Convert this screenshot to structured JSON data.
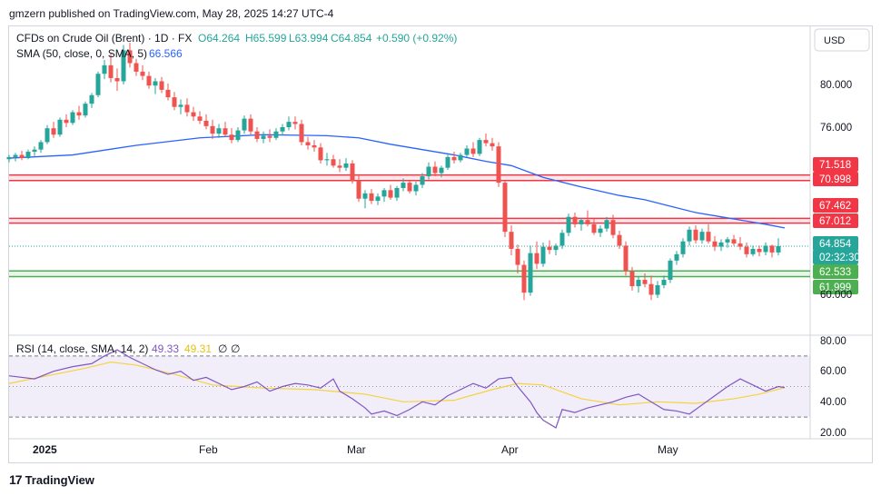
{
  "header": {
    "text": "gmzern published on TradingView.com, May 28, 2025 14:27 UTC-4"
  },
  "legend": {
    "symbol": "CFDs on Crude Oil (Brent) · 1D · FX",
    "o": "O64.264",
    "h": "H65.599",
    "l": "L63.994",
    "c": "C64.854",
    "change": "+0.590 (+0.92%)",
    "sma_label": "SMA (50, close, 0, SMA, 5)",
    "sma_value": "66.566",
    "rsi_label": "RSI (14, close, SMA, 14, 2)",
    "rsi_value": "49.33",
    "rsi_sma_value": "49.31",
    "rsi_extra1": "∅",
    "rsi_extra2": "∅"
  },
  "price_axis": {
    "currency": "USD",
    "ticks": [
      "80.000",
      "76.000",
      "60.000"
    ]
  },
  "rsi_axis": {
    "ticks": [
      "80.00",
      "60.00",
      "40.00",
      "20.00"
    ]
  },
  "time_axis": {
    "ticks": [
      "2025",
      "Feb",
      "Mar",
      "Apr",
      "May"
    ]
  },
  "price_labels": [
    {
      "text": "71.518",
      "kind": "red",
      "value": 71.518
    },
    {
      "text": "70.998",
      "kind": "red",
      "value": 70.998
    },
    {
      "text": "67.462",
      "kind": "red",
      "value": 67.462
    },
    {
      "text": "67.012",
      "kind": "red",
      "value": 67.012
    },
    {
      "text": "64.854",
      "kind": "teal",
      "value": 64.854
    },
    {
      "text": "02:32:30",
      "kind": "teal-sub",
      "value": 64.854
    },
    {
      "text": "62.533",
      "kind": "green",
      "value": 62.533
    },
    {
      "text": "61.999",
      "kind": "green",
      "value": 61.999
    }
  ],
  "branding": {
    "name": "TradingView",
    "mark": "17"
  },
  "colors": {
    "up": "#26a69a",
    "down": "#ef5350",
    "sma": "#2962ff",
    "rsi": "#7e57c2",
    "rsi_sma": "#f5d23c",
    "resistance": "#f23645",
    "support": "#4caf50"
  },
  "chart_data": {
    "type": "candlestick",
    "y_range": [
      58.0,
      87.2
    ],
    "rsi_range": [
      15,
      85
    ],
    "resistance_zones": [
      [
        70.998,
        71.518
      ],
      [
        67.012,
        67.462
      ]
    ],
    "support_zone": [
      61.999,
      62.533
    ],
    "last_price": 64.854,
    "candles": [
      [
        73.0,
        73.4,
        72.7,
        73.2
      ],
      [
        73.2,
        73.6,
        72.8,
        73.4
      ],
      [
        73.4,
        73.8,
        72.9,
        73.1
      ],
      [
        73.1,
        73.9,
        73.0,
        73.7
      ],
      [
        73.7,
        74.2,
        73.3,
        73.9
      ],
      [
        73.9,
        74.8,
        73.6,
        74.6
      ],
      [
        74.6,
        76.2,
        74.4,
        75.9
      ],
      [
        75.9,
        76.5,
        75.0,
        75.3
      ],
      [
        75.3,
        76.9,
        75.1,
        76.7
      ],
      [
        76.7,
        77.2,
        76.0,
        76.4
      ],
      [
        76.4,
        77.6,
        76.2,
        77.4
      ],
      [
        77.4,
        78.0,
        76.7,
        77.1
      ],
      [
        77.1,
        78.4,
        76.9,
        78.2
      ],
      [
        78.2,
        79.2,
        77.8,
        79.0
      ],
      [
        79.0,
        81.2,
        78.8,
        81.0
      ],
      [
        81.0,
        82.3,
        80.5,
        81.8
      ],
      [
        81.8,
        82.9,
        80.2,
        80.6
      ],
      [
        80.6,
        81.5,
        79.4,
        80.3
      ],
      [
        80.3,
        83.7,
        80.0,
        83.2
      ],
      [
        83.2,
        83.9,
        81.6,
        82.0
      ],
      [
        82.0,
        82.4,
        80.8,
        81.2
      ],
      [
        81.2,
        81.8,
        80.4,
        80.8
      ],
      [
        80.8,
        81.2,
        79.6,
        79.9
      ],
      [
        79.9,
        80.6,
        79.1,
        80.3
      ],
      [
        80.3,
        80.7,
        79.2,
        79.5
      ],
      [
        79.5,
        80.1,
        78.5,
        78.8
      ],
      [
        78.8,
        79.3,
        77.6,
        77.9
      ],
      [
        77.9,
        78.6,
        77.2,
        78.1
      ],
      [
        78.1,
        78.7,
        77.0,
        77.4
      ],
      [
        77.4,
        77.9,
        76.6,
        77.0
      ],
      [
        77.0,
        77.5,
        76.3,
        76.6
      ],
      [
        76.6,
        77.2,
        75.8,
        76.1
      ],
      [
        76.1,
        76.7,
        74.9,
        75.4
      ],
      [
        75.4,
        76.3,
        75.0,
        75.9
      ],
      [
        75.9,
        76.5,
        75.1,
        75.3
      ],
      [
        75.3,
        75.9,
        74.5,
        74.8
      ],
      [
        74.8,
        76.0,
        74.6,
        75.7
      ],
      [
        75.7,
        77.1,
        75.4,
        76.8
      ],
      [
        76.8,
        77.2,
        75.3,
        75.6
      ],
      [
        75.6,
        76.0,
        74.6,
        74.9
      ],
      [
        74.9,
        75.6,
        74.5,
        75.2
      ],
      [
        75.2,
        75.8,
        74.6,
        75.0
      ],
      [
        75.0,
        75.9,
        74.8,
        75.6
      ],
      [
        75.6,
        76.3,
        75.2,
        76.0
      ],
      [
        76.0,
        77.0,
        75.7,
        76.5
      ],
      [
        76.5,
        77.0,
        75.8,
        76.3
      ],
      [
        76.3,
        76.7,
        74.3,
        74.6
      ],
      [
        74.6,
        75.1,
        73.9,
        74.3
      ],
      [
        74.3,
        74.8,
        73.7,
        74.1
      ],
      [
        74.1,
        74.5,
        72.6,
        72.9
      ],
      [
        72.9,
        73.6,
        72.4,
        73.0
      ],
      [
        73.0,
        73.4,
        72.2,
        72.4
      ],
      [
        72.4,
        73.0,
        71.8,
        72.2
      ],
      [
        72.2,
        73.1,
        71.9,
        72.6
      ],
      [
        72.6,
        72.9,
        70.7,
        71.0
      ],
      [
        71.0,
        71.5,
        69.0,
        69.3
      ],
      [
        69.3,
        70.1,
        68.4,
        69.8
      ],
      [
        69.8,
        70.2,
        68.8,
        69.1
      ],
      [
        69.1,
        69.8,
        68.7,
        69.5
      ],
      [
        69.5,
        70.3,
        69.0,
        70.1
      ],
      [
        70.1,
        70.6,
        69.2,
        69.4
      ],
      [
        69.4,
        70.5,
        69.1,
        70.3
      ],
      [
        70.3,
        71.2,
        70.0,
        70.8
      ],
      [
        70.8,
        71.0,
        69.8,
        70.0
      ],
      [
        70.0,
        70.9,
        69.6,
        70.6
      ],
      [
        70.6,
        71.7,
        70.3,
        71.4
      ],
      [
        71.4,
        72.7,
        71.1,
        72.3
      ],
      [
        72.3,
        72.8,
        71.4,
        71.7
      ],
      [
        71.7,
        72.4,
        71.3,
        72.2
      ],
      [
        72.2,
        73.4,
        72.0,
        73.2
      ],
      [
        73.2,
        73.7,
        72.6,
        72.9
      ],
      [
        72.9,
        73.6,
        72.7,
        73.4
      ],
      [
        73.4,
        74.3,
        73.2,
        74.0
      ],
      [
        74.0,
        74.6,
        73.2,
        73.5
      ],
      [
        73.5,
        75.0,
        73.3,
        74.8
      ],
      [
        74.8,
        75.4,
        74.2,
        74.5
      ],
      [
        74.5,
        75.0,
        73.8,
        74.2
      ],
      [
        74.2,
        74.6,
        70.4,
        70.8
      ],
      [
        70.8,
        71.0,
        65.7,
        66.2
      ],
      [
        66.2,
        66.8,
        64.0,
        64.6
      ],
      [
        64.6,
        65.0,
        62.3,
        63.1
      ],
      [
        63.1,
        63.5,
        59.8,
        60.5
      ],
      [
        60.5,
        64.9,
        60.2,
        64.2
      ],
      [
        64.2,
        65.3,
        62.7,
        63.2
      ],
      [
        63.2,
        65.2,
        62.9,
        64.8
      ],
      [
        64.8,
        65.4,
        64.1,
        64.5
      ],
      [
        64.5,
        65.1,
        64.0,
        64.9
      ],
      [
        64.9,
        66.4,
        64.6,
        66.1
      ],
      [
        66.1,
        67.9,
        65.8,
        67.6
      ],
      [
        67.6,
        68.0,
        66.6,
        66.9
      ],
      [
        66.9,
        67.5,
        66.3,
        67.3
      ],
      [
        67.3,
        68.2,
        66.7,
        66.9
      ],
      [
        66.9,
        67.4,
        65.9,
        66.1
      ],
      [
        66.1,
        66.8,
        65.7,
        66.5
      ],
      [
        66.5,
        67.6,
        66.2,
        67.3
      ],
      [
        67.3,
        67.8,
        65.6,
        65.9
      ],
      [
        65.9,
        66.3,
        64.6,
        64.9
      ],
      [
        64.9,
        65.3,
        62.1,
        62.5
      ],
      [
        62.5,
        62.9,
        60.7,
        61.1
      ],
      [
        61.1,
        62.0,
        60.5,
        61.7
      ],
      [
        61.7,
        62.3,
        61.0,
        61.3
      ],
      [
        61.3,
        62.1,
        59.8,
        60.3
      ],
      [
        60.3,
        61.6,
        60.0,
        61.2
      ],
      [
        61.2,
        62.1,
        60.9,
        61.7
      ],
      [
        61.7,
        63.7,
        61.4,
        63.5
      ],
      [
        63.5,
        64.4,
        63.1,
        64.1
      ],
      [
        64.1,
        65.6,
        63.8,
        65.3
      ],
      [
        65.3,
        66.7,
        64.9,
        66.4
      ],
      [
        66.4,
        66.8,
        65.1,
        65.4
      ],
      [
        65.4,
        66.5,
        65.1,
        66.2
      ],
      [
        66.2,
        66.9,
        65.1,
        65.3
      ],
      [
        65.3,
        65.8,
        64.4,
        64.8
      ],
      [
        64.8,
        65.5,
        64.4,
        65.2
      ],
      [
        65.2,
        65.7,
        64.7,
        65.5
      ],
      [
        65.5,
        65.9,
        64.9,
        65.1
      ],
      [
        65.1,
        65.7,
        64.5,
        64.8
      ],
      [
        64.8,
        65.2,
        63.8,
        64.1
      ],
      [
        64.1,
        64.9,
        63.9,
        64.6
      ],
      [
        64.6,
        64.9,
        63.9,
        64.3
      ],
      [
        64.3,
        65.2,
        64.0,
        64.9
      ],
      [
        64.9,
        65.0,
        63.8,
        64.264
      ],
      [
        64.264,
        65.599,
        63.994,
        64.854
      ]
    ],
    "sma": [
      [
        0,
        73.1
      ],
      [
        10,
        73.4
      ],
      [
        20,
        74.3
      ],
      [
        30,
        75.0
      ],
      [
        40,
        75.3
      ],
      [
        50,
        75.2
      ],
      [
        55,
        75.0
      ],
      [
        60,
        74.4
      ],
      [
        65,
        73.9
      ],
      [
        70,
        73.4
      ],
      [
        75,
        72.8
      ],
      [
        79,
        72.4
      ],
      [
        84,
        71.3
      ],
      [
        90,
        70.4
      ],
      [
        96,
        69.6
      ],
      [
        100,
        69.2
      ],
      [
        104,
        68.6
      ],
      [
        108,
        68.0
      ],
      [
        112,
        67.6
      ],
      [
        116,
        67.2
      ],
      [
        119,
        66.9
      ],
      [
        122,
        66.566
      ]
    ],
    "rsi": [
      [
        0,
        57
      ],
      [
        4,
        55
      ],
      [
        7,
        60
      ],
      [
        10,
        63
      ],
      [
        13,
        65
      ],
      [
        15,
        70
      ],
      [
        17,
        74
      ],
      [
        19,
        69
      ],
      [
        21,
        65
      ],
      [
        23,
        61
      ],
      [
        25,
        58
      ],
      [
        27,
        60
      ],
      [
        29,
        54
      ],
      [
        31,
        56
      ],
      [
        33,
        52
      ],
      [
        35,
        48
      ],
      [
        37,
        50
      ],
      [
        39,
        53
      ],
      [
        41,
        47
      ],
      [
        43,
        50
      ],
      [
        45,
        52
      ],
      [
        47,
        51
      ],
      [
        49,
        49
      ],
      [
        51,
        55
      ],
      [
        52,
        47
      ],
      [
        54,
        42
      ],
      [
        56,
        36
      ],
      [
        57,
        32
      ],
      [
        59,
        34
      ],
      [
        61,
        31
      ],
      [
        63,
        35
      ],
      [
        65,
        40
      ],
      [
        67,
        38
      ],
      [
        69,
        44
      ],
      [
        71,
        48
      ],
      [
        73,
        52
      ],
      [
        75,
        49
      ],
      [
        77,
        55
      ],
      [
        79,
        56
      ],
      [
        80,
        50
      ],
      [
        82,
        40
      ],
      [
        83,
        33
      ],
      [
        84,
        28
      ],
      [
        86,
        23
      ],
      [
        87,
        35
      ],
      [
        89,
        33
      ],
      [
        91,
        36
      ],
      [
        93,
        38
      ],
      [
        95,
        40
      ],
      [
        97,
        43
      ],
      [
        99,
        45
      ],
      [
        101,
        40
      ],
      [
        103,
        35
      ],
      [
        105,
        34
      ],
      [
        107,
        32
      ],
      [
        109,
        38
      ],
      [
        111,
        44
      ],
      [
        113,
        50
      ],
      [
        115,
        55
      ],
      [
        117,
        51
      ],
      [
        119,
        47
      ],
      [
        121,
        50
      ],
      [
        122,
        49.33
      ]
    ],
    "rsi_sma": [
      [
        0,
        52
      ],
      [
        6,
        57
      ],
      [
        12,
        62
      ],
      [
        16,
        66
      ],
      [
        20,
        64
      ],
      [
        26,
        58
      ],
      [
        32,
        51
      ],
      [
        40,
        49
      ],
      [
        48,
        48
      ],
      [
        56,
        45
      ],
      [
        62,
        40
      ],
      [
        70,
        41
      ],
      [
        76,
        48
      ],
      [
        80,
        52
      ],
      [
        84,
        51
      ],
      [
        90,
        42
      ],
      [
        96,
        38
      ],
      [
        102,
        40
      ],
      [
        108,
        39
      ],
      [
        114,
        42
      ],
      [
        118,
        45
      ],
      [
        122,
        49.31
      ]
    ],
    "rsi_bands": [
      70,
      30
    ]
  }
}
